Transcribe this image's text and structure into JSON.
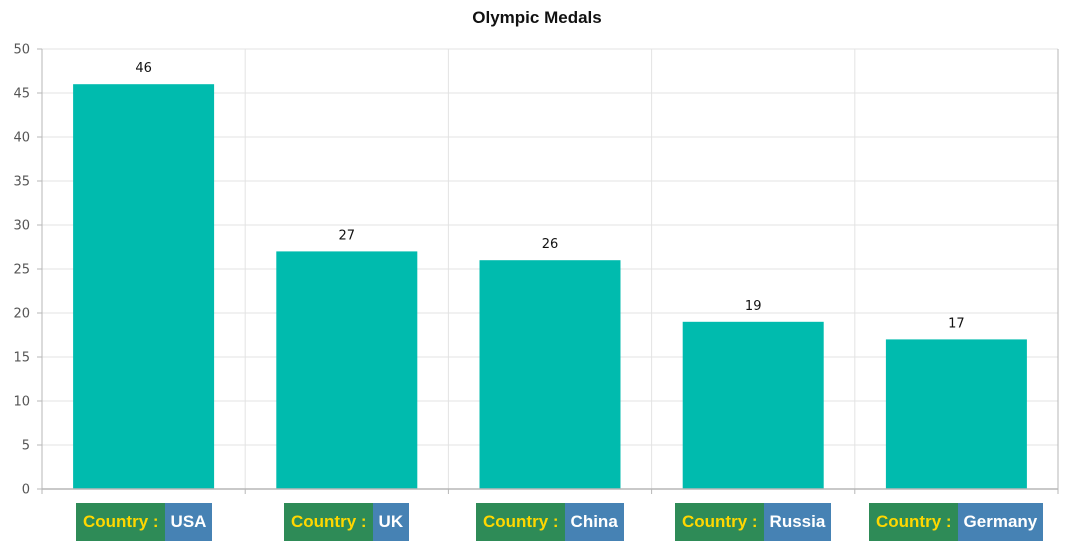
{
  "colors": {
    "bar": "#00BBAE",
    "grid": "#E3E3E3",
    "axis": "#B7B7B7",
    "label_prefix_bg": "#2E8B57",
    "label_prefix_text": "#FFD700",
    "label_country_bg": "#4682B4",
    "label_country_text": "#FFFFFF"
  },
  "x_label_prefix": "Country : ",
  "chart_data": {
    "type": "bar",
    "title": "Olympic Medals",
    "categories": [
      "USA",
      "UK",
      "China",
      "Russia",
      "Germany"
    ],
    "values": [
      46,
      27,
      26,
      19,
      17
    ],
    "data_labels": [
      "46",
      "27",
      "26",
      "19",
      "17"
    ],
    "ylim": [
      0,
      50
    ],
    "y_ticks": [
      0,
      5,
      10,
      15,
      20,
      25,
      30,
      35,
      40,
      45,
      50
    ],
    "y_tick_labels": [
      "0",
      "5",
      "10",
      "15",
      "20",
      "25",
      "30",
      "35",
      "40",
      "45",
      "50"
    ],
    "grid": true,
    "legend": "none"
  }
}
